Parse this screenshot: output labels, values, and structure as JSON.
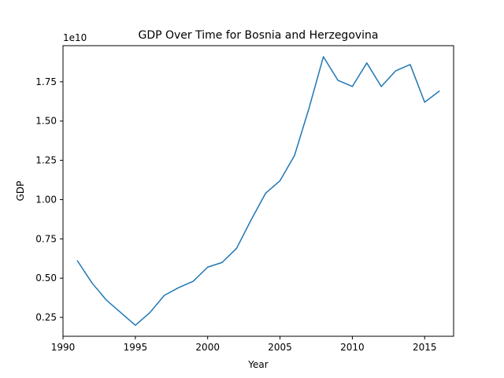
{
  "chart_data": {
    "type": "line",
    "title": "GDP Over Time for Bosnia and Herzegovina",
    "xlabel": "Year",
    "ylabel": "GDP",
    "y_offset_text": "1e10",
    "xlim": [
      1990,
      2017
    ],
    "ylim": [
      0.13,
      1.98
    ],
    "x_ticks": [
      1990,
      1995,
      2000,
      2005,
      2010,
      2015
    ],
    "y_ticks": [
      0.25,
      0.5,
      0.75,
      1.0,
      1.25,
      1.5,
      1.75
    ],
    "y_tick_labels": [
      "0.25",
      "0.50",
      "0.75",
      "1.00",
      "1.25",
      "1.50",
      "1.75"
    ],
    "grid": false,
    "line_color": "#1f77b4",
    "series": [
      {
        "x": [
          1991,
          1992,
          1993,
          1994,
          1995,
          1996,
          1997,
          1998,
          1999,
          2000,
          2001,
          2002,
          2003,
          2004,
          2005,
          2006,
          2007,
          2008,
          2009,
          2010,
          2011,
          2012,
          2013,
          2014,
          2015,
          2016
        ],
        "values": [
          0.61,
          0.47,
          0.36,
          0.28,
          0.2,
          0.28,
          0.39,
          0.44,
          0.48,
          0.57,
          0.6,
          0.69,
          0.87,
          1.04,
          1.12,
          1.28,
          1.58,
          1.91,
          1.76,
          1.72,
          1.87,
          1.72,
          1.82,
          1.86,
          1.62,
          1.69
        ]
      }
    ]
  }
}
